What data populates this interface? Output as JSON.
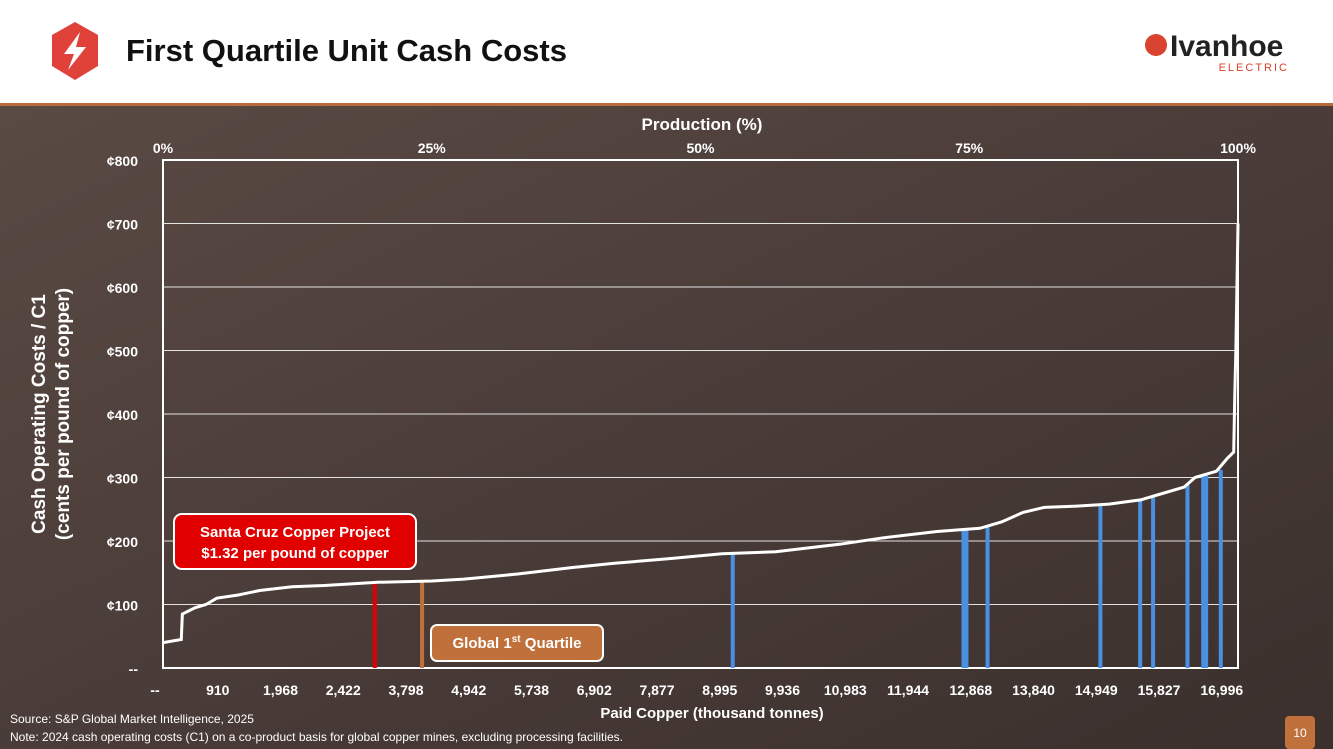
{
  "header": {
    "title": "First Quartile Unit Cash Costs",
    "logo_name": "Ivanhoe",
    "logo_sub": "ELECTRIC"
  },
  "chart_data": {
    "type": "line",
    "x_top_label": "Production (%)",
    "x_label": "Paid Copper (thousand tonnes)",
    "y_label": [
      "Cash Operating Costs / C1",
      "(cents per pound of copper)"
    ],
    "xlim": [
      0,
      100
    ],
    "xticks": [
      {
        "value": 0,
        "label": "0%"
      },
      {
        "value": 25,
        "label": "25%"
      },
      {
        "value": 50,
        "label": "50%"
      },
      {
        "value": 75,
        "label": "75%"
      },
      {
        "value": 100,
        "label": "100%"
      }
    ],
    "categories": [
      "--",
      "910",
      "1,968",
      "2,422",
      "3,798",
      "4,942",
      "5,738",
      "6,902",
      "7,877",
      "8,995",
      "9,936",
      "10,983",
      "11,944",
      "12,868",
      "13,840",
      "14,949",
      "15,827",
      "16,996"
    ],
    "ylim": [
      0,
      800
    ],
    "yticks": [
      {
        "value": 0,
        "label": "--"
      },
      {
        "value": 100,
        "label": "¢100"
      },
      {
        "value": 200,
        "label": "¢200"
      },
      {
        "value": 300,
        "label": "¢300"
      },
      {
        "value": 400,
        "label": "¢400"
      },
      {
        "value": 500,
        "label": "¢500"
      },
      {
        "value": 600,
        "label": "¢600"
      },
      {
        "value": 700,
        "label": "¢700"
      },
      {
        "value": 800,
        "label": "¢800"
      }
    ],
    "grid": true,
    "series": [
      {
        "color": "#ffffff",
        "x": [
          0,
          1.7,
          1.8,
          3,
          4,
          5,
          7,
          9,
          12,
          15,
          20,
          25,
          28,
          33,
          38,
          42,
          47,
          52,
          57,
          63,
          67,
          72,
          76,
          78,
          80,
          82,
          85,
          88,
          91,
          93,
          95,
          96,
          98,
          99,
          99.6,
          99.7,
          99.8,
          100
        ],
        "values": [
          40,
          45,
          85,
          95,
          100,
          110,
          115,
          122,
          128,
          130,
          135,
          137,
          140,
          148,
          158,
          165,
          172,
          180,
          183,
          195,
          205,
          215,
          220,
          230,
          245,
          253,
          255,
          258,
          265,
          275,
          285,
          300,
          310,
          330,
          340,
          430,
          500,
          700
        ]
      }
    ],
    "highlights": {
      "x": [
        19.7,
        24.1,
        53,
        74.6,
        76.7,
        87.2,
        90.9,
        92.1,
        95.3,
        96.9,
        98.4
      ],
      "values": [
        135,
        137,
        182,
        220,
        222,
        257,
        265,
        270,
        290,
        303,
        312
      ],
      "colors": [
        "#e00000",
        "#c0703a",
        "#4a90e2",
        "#4a90e2",
        "#4a90e2",
        "#4a90e2",
        "#4a90e2",
        "#4a90e2",
        "#4a90e2",
        "#4a90e2",
        "#4a90e2"
      ]
    },
    "annotations": {
      "santa_cruz": [
        "Santa Cruz Copper Project",
        "$1.32 per pound of copper"
      ],
      "quartile": [
        "Global 1",
        "st",
        " Quartile"
      ]
    }
  },
  "footer": {
    "source": "Source: S&P Global Market Intelligence, 2025",
    "note": "Note: 2024 cash operating costs (C1) on a co-product basis for global copper mines, excluding processing facilities.",
    "page": "10"
  }
}
